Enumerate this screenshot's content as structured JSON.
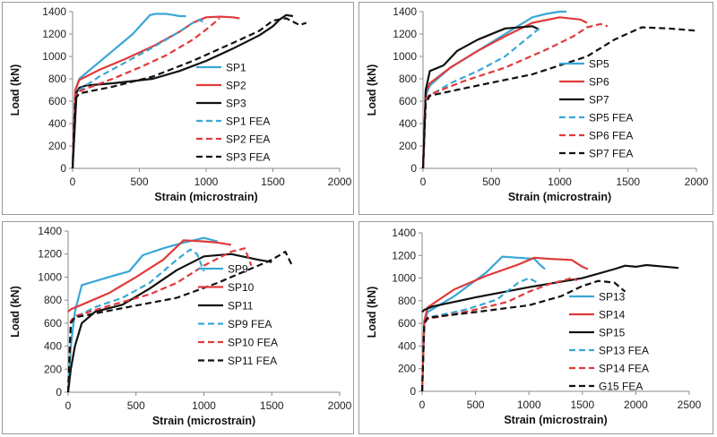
{
  "chart_data": [
    {
      "type": "line",
      "xlabel": "Strain (microstrain)",
      "ylabel": "Load (kN)",
      "xlim": [
        0,
        2000
      ],
      "ylim": [
        0,
        1400
      ],
      "xticks": [
        "0",
        "500",
        "1000",
        "1500",
        "2000"
      ],
      "yticks": [
        "0",
        "200",
        "400",
        "600",
        "800",
        "1000",
        "1200",
        "1400"
      ],
      "series": [
        {
          "name": "SP1",
          "color": "#3aa7d5",
          "style": "solid",
          "x": [
            0,
            20,
            50,
            150,
            300,
            450,
            580,
            620,
            700,
            760,
            800,
            850
          ],
          "y": [
            0,
            700,
            800,
            900,
            1050,
            1200,
            1370,
            1380,
            1380,
            1370,
            1360,
            1360
          ]
        },
        {
          "name": "SP2",
          "color": "#e03a3a",
          "style": "solid",
          "x": [
            0,
            20,
            50,
            200,
            400,
            600,
            800,
            900,
            1000,
            1100,
            1200,
            1250
          ],
          "y": [
            0,
            700,
            790,
            880,
            980,
            1090,
            1220,
            1300,
            1350,
            1355,
            1350,
            1340
          ]
        },
        {
          "name": "SP3",
          "color": "#111111",
          "style": "solid",
          "x": [
            0,
            30,
            50,
            100,
            300,
            600,
            800,
            1000,
            1200,
            1400,
            1500,
            1550,
            1600,
            1650
          ],
          "y": [
            0,
            680,
            720,
            740,
            760,
            800,
            870,
            960,
            1070,
            1190,
            1270,
            1330,
            1370,
            1360
          ]
        },
        {
          "name": "SP1 FEA",
          "color": "#3aa7d5",
          "style": "dashed",
          "x": [
            0,
            20,
            50,
            200,
            400,
            600,
            800,
            900,
            950,
            1000
          ],
          "y": [
            0,
            650,
            700,
            820,
            950,
            1080,
            1220,
            1300,
            1330,
            1290
          ]
        },
        {
          "name": "SP2 FEA",
          "color": "#e03a3a",
          "style": "dashed",
          "x": [
            0,
            20,
            50,
            300,
            500,
            700,
            900,
            1000,
            1050,
            1100
          ],
          "y": [
            0,
            650,
            690,
            800,
            900,
            1010,
            1150,
            1240,
            1290,
            1340
          ]
        },
        {
          "name": "SP3 FEA",
          "color": "#111111",
          "style": "dashed",
          "x": [
            0,
            20,
            50,
            300,
            600,
            900,
            1200,
            1400,
            1500,
            1600,
            1700,
            1750
          ],
          "y": [
            0,
            620,
            670,
            730,
            820,
            960,
            1120,
            1230,
            1320,
            1340,
            1280,
            1300
          ]
        }
      ]
    },
    {
      "type": "line",
      "xlabel": "Strain (microstrain)",
      "ylabel": "Load (kN)",
      "xlim": [
        0,
        2000
      ],
      "ylim": [
        0,
        1400
      ],
      "xticks": [
        "0",
        "500",
        "1000",
        "1500",
        "2000"
      ],
      "yticks": [
        "0",
        "200",
        "400",
        "600",
        "800",
        "1000",
        "1200",
        "1400"
      ],
      "series": [
        {
          "name": "SP5",
          "color": "#3aa7d5",
          "style": "solid",
          "x": [
            0,
            20,
            50,
            200,
            400,
            600,
            800,
            900,
            1000,
            1050
          ],
          "y": [
            0,
            650,
            740,
            900,
            1050,
            1200,
            1350,
            1380,
            1400,
            1400
          ]
        },
        {
          "name": "SP6",
          "color": "#e03a3a",
          "style": "solid",
          "x": [
            0,
            20,
            50,
            200,
            400,
            600,
            800,
            1000,
            1150,
            1200
          ],
          "y": [
            0,
            680,
            760,
            900,
            1050,
            1180,
            1300,
            1350,
            1330,
            1300
          ]
        },
        {
          "name": "SP7",
          "color": "#111111",
          "style": "solid",
          "x": [
            0,
            20,
            50,
            150,
            250,
            400,
            600,
            800,
            850
          ],
          "y": [
            0,
            700,
            870,
            920,
            1050,
            1150,
            1250,
            1270,
            1240
          ]
        },
        {
          "name": "SP5 FEA",
          "color": "#3aa7d5",
          "style": "dashed",
          "x": [
            0,
            20,
            50,
            200,
            400,
            600,
            700,
            800,
            850
          ],
          "y": [
            0,
            600,
            650,
            760,
            870,
            1000,
            1100,
            1200,
            1250
          ]
        },
        {
          "name": "SP6 FEA",
          "color": "#e03a3a",
          "style": "dashed",
          "x": [
            0,
            20,
            50,
            300,
            600,
            900,
            1100,
            1200,
            1300,
            1350
          ],
          "y": [
            0,
            620,
            660,
            780,
            900,
            1060,
            1180,
            1260,
            1290,
            1270
          ]
        },
        {
          "name": "SP7 FEA",
          "color": "#111111",
          "style": "dashed",
          "x": [
            0,
            20,
            50,
            400,
            800,
            1200,
            1400,
            1600,
            1800,
            2000
          ],
          "y": [
            0,
            580,
            650,
            740,
            840,
            1000,
            1150,
            1260,
            1250,
            1230
          ]
        }
      ]
    },
    {
      "type": "line",
      "xlabel": "Strain (microstrain)",
      "ylabel": "Load (kN)",
      "xlim": [
        0,
        2000
      ],
      "ylim": [
        0,
        1400
      ],
      "xticks": [
        "0",
        "500",
        "1000",
        "1500",
        "2000"
      ],
      "yticks": [
        "0",
        "200",
        "400",
        "600",
        "800",
        "1000",
        "1200",
        "1400"
      ],
      "series": [
        {
          "name": "SP9",
          "color": "#3aa7d5",
          "style": "solid",
          "x": [
            0,
            20,
            50,
            100,
            300,
            450,
            500,
            550,
            700,
            850,
            1000,
            1100
          ],
          "y": [
            0,
            400,
            700,
            930,
            1000,
            1050,
            1120,
            1190,
            1250,
            1300,
            1340,
            1310
          ]
        },
        {
          "name": "SP10",
          "color": "#e03a3a",
          "style": "solid",
          "x": [
            0,
            20,
            100,
            300,
            500,
            700,
            850,
            1000,
            1100,
            1200
          ],
          "y": [
            700,
            720,
            760,
            860,
            1000,
            1150,
            1320,
            1310,
            1300,
            1280
          ]
        },
        {
          "name": "SP11",
          "color": "#111111",
          "style": "solid",
          "x": [
            0,
            20,
            50,
            100,
            200,
            400,
            600,
            800,
            1000,
            1200,
            1400,
            1500
          ],
          "y": [
            0,
            200,
            400,
            600,
            700,
            760,
            900,
            1060,
            1180,
            1200,
            1150,
            1130
          ]
        },
        {
          "name": "SP9 FEA",
          "color": "#3aa7d5",
          "style": "dashed",
          "x": [
            0,
            20,
            50,
            200,
            400,
            600,
            800,
            900,
            950,
            1000
          ],
          "y": [
            0,
            600,
            650,
            740,
            820,
            950,
            1150,
            1240,
            1200,
            1050
          ]
        },
        {
          "name": "SP10 FEA",
          "color": "#e03a3a",
          "style": "dashed",
          "x": [
            0,
            20,
            50,
            300,
            600,
            800,
            1000,
            1200,
            1300,
            1350
          ],
          "y": [
            0,
            620,
            660,
            750,
            850,
            950,
            1100,
            1220,
            1250,
            1100
          ]
        },
        {
          "name": "SP11 FEA",
          "color": "#111111",
          "style": "dashed",
          "x": [
            0,
            20,
            50,
            400,
            800,
            1100,
            1300,
            1500,
            1600,
            1650
          ],
          "y": [
            0,
            600,
            650,
            730,
            820,
            950,
            1050,
            1150,
            1220,
            1100
          ]
        }
      ]
    },
    {
      "type": "line",
      "xlabel": "Strain (microstrain)",
      "ylabel": "Load (kN)",
      "xlim": [
        0,
        2500
      ],
      "ylim": [
        0,
        1400
      ],
      "xticks": [
        "0",
        "500",
        "1000",
        "1500",
        "2000",
        "2500"
      ],
      "yticks": [
        "0",
        "200",
        "400",
        "600",
        "800",
        "1000",
        "1200",
        "1400"
      ],
      "series": [
        {
          "name": "SP13",
          "color": "#3aa7d5",
          "style": "solid",
          "x": [
            0,
            20,
            50,
            300,
            600,
            750,
            900,
            1050,
            1100,
            1150
          ],
          "y": [
            0,
            600,
            700,
            840,
            1050,
            1190,
            1180,
            1170,
            1120,
            1080
          ]
        },
        {
          "name": "SP14",
          "color": "#e03a3a",
          "style": "solid",
          "x": [
            0,
            20,
            50,
            300,
            600,
            900,
            1050,
            1200,
            1400,
            1500,
            1550
          ],
          "y": [
            0,
            620,
            740,
            900,
            1020,
            1120,
            1180,
            1170,
            1160,
            1100,
            1080
          ]
        },
        {
          "name": "SP15",
          "color": "#111111",
          "style": "solid",
          "x": [
            0,
            20,
            100,
            500,
            1000,
            1500,
            1800,
            1900,
            2000,
            2100,
            2400
          ],
          "y": [
            700,
            720,
            750,
            830,
            920,
            1000,
            1080,
            1110,
            1100,
            1115,
            1090
          ]
        },
        {
          "name": "SP13 FEA",
          "color": "#3aa7d5",
          "style": "dashed",
          "x": [
            0,
            20,
            50,
            400,
            700,
            900,
            1000,
            1100
          ],
          "y": [
            0,
            600,
            650,
            720,
            810,
            960,
            1000,
            950
          ]
        },
        {
          "name": "SP14 FEA",
          "color": "#e03a3a",
          "style": "dashed",
          "x": [
            0,
            20,
            50,
            400,
            800,
            1000,
            1200,
            1400,
            1450
          ],
          "y": [
            0,
            600,
            640,
            700,
            790,
            880,
            950,
            1000,
            980
          ]
        },
        {
          "name": "G15 FEA",
          "color": "#111111",
          "style": "dashed",
          "x": [
            0,
            20,
            50,
            500,
            1000,
            1300,
            1500,
            1650,
            1800,
            1900
          ],
          "y": [
            0,
            600,
            650,
            700,
            760,
            840,
            930,
            975,
            960,
            880
          ]
        }
      ]
    }
  ]
}
